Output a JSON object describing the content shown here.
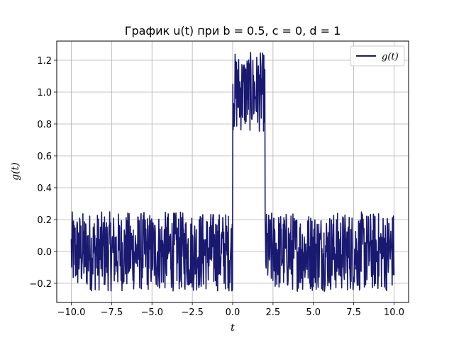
{
  "chart_data": {
    "type": "line",
    "title": "График u(t) при b = 0.5, c = 0, d = 1",
    "xlabel": "t",
    "ylabel": "g(t)",
    "xlim": [
      -10.9,
      10.9
    ],
    "ylim": [
      -0.32,
      1.32
    ],
    "grid": true,
    "legend_position": "top-right",
    "x_ticks": [
      "−10.0",
      "−7.5",
      "−5.0",
      "−2.5",
      "0.0",
      "2.5",
      "5.0",
      "7.5",
      "10.0"
    ],
    "x_tick_values": [
      -10,
      -7.5,
      -5,
      -2.5,
      0,
      2.5,
      5,
      7.5,
      10
    ],
    "y_ticks": [
      "−0.2",
      "0.0",
      "0.2",
      "0.4",
      "0.6",
      "0.8",
      "1.0",
      "1.2"
    ],
    "y_tick_values": [
      -0.2,
      0,
      0.2,
      0.4,
      0.6,
      0.8,
      1.0,
      1.2
    ],
    "series": [
      {
        "name": "g(t)",
        "color": "#191970",
        "x_range": [
          -10,
          10
        ],
        "points": 1000,
        "segments": [
          {
            "x_start": -10,
            "x_end": 0,
            "mean": 0.0,
            "noise_amplitude": 0.25
          },
          {
            "x_start": 0,
            "x_end": 2,
            "mean": 1.0,
            "noise_amplitude": 0.25
          },
          {
            "x_start": 2,
            "x_end": 10,
            "mean": 0.0,
            "noise_amplitude": 0.25
          }
        ]
      }
    ]
  }
}
